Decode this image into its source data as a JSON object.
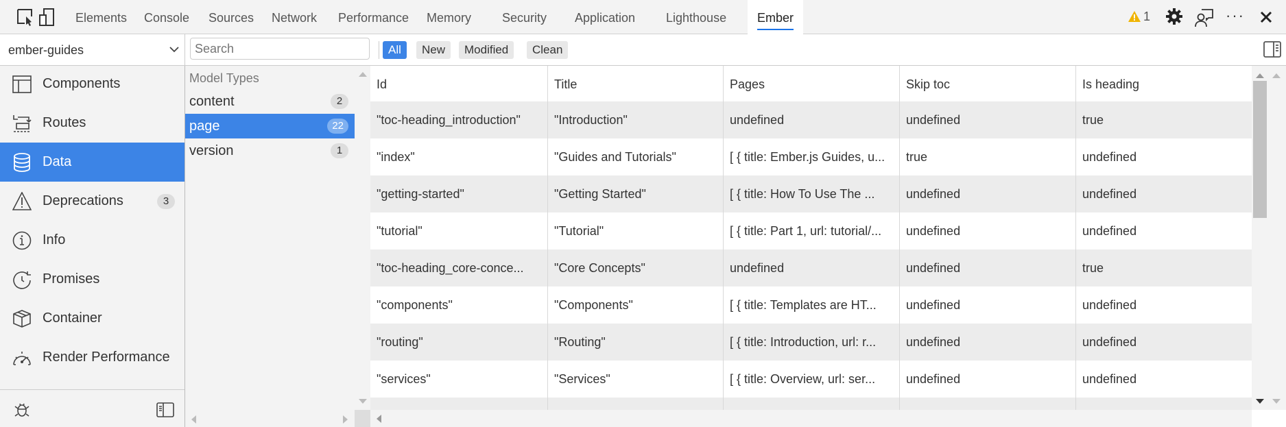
{
  "toolbar": {
    "tabs": [
      "Elements",
      "Console",
      "Sources",
      "Network",
      "Performance",
      "Memory",
      "Security",
      "Application",
      "Lighthouse",
      "Ember"
    ],
    "active_tab": "Ember",
    "warning_count": "1",
    "warning_color": "#f0b400"
  },
  "app_select": {
    "value": "ember-guides"
  },
  "search": {
    "placeholder": "Search"
  },
  "filters": [
    "All",
    "New",
    "Modified",
    "Clean"
  ],
  "sidebar": {
    "items": [
      {
        "label": "Components",
        "icon": "components-icon"
      },
      {
        "label": "Routes",
        "icon": "routes-icon"
      },
      {
        "label": "Data",
        "icon": "database-icon",
        "active": true
      },
      {
        "label": "Deprecations",
        "icon": "warning-icon",
        "badge": "3"
      },
      {
        "label": "Info",
        "icon": "info-icon"
      },
      {
        "label": "Promises",
        "icon": "promises-icon"
      },
      {
        "label": "Container",
        "icon": "box-icon"
      },
      {
        "label": "Render Performance",
        "icon": "gauge-icon"
      }
    ]
  },
  "models": {
    "header": "Model Types",
    "items": [
      {
        "label": "content",
        "count": "2"
      },
      {
        "label": "page",
        "count": "22",
        "active": true
      },
      {
        "label": "version",
        "count": "1"
      }
    ]
  },
  "table": {
    "columns": [
      "Id",
      "Title",
      "Pages",
      "Skip toc",
      "Is heading"
    ],
    "rows": [
      [
        "\"toc-heading_introduction\"",
        "\"Introduction\"",
        "undefined",
        "undefined",
        "true"
      ],
      [
        "\"index\"",
        "\"Guides and Tutorials\"",
        "[ { title: Ember.js Guides, u...",
        "true",
        "undefined"
      ],
      [
        "\"getting-started\"",
        "\"Getting Started\"",
        "[ { title: How To Use The ...",
        "undefined",
        "undefined"
      ],
      [
        "\"tutorial\"",
        "\"Tutorial\"",
        "[ { title: Part 1, url: tutorial/...",
        "undefined",
        "undefined"
      ],
      [
        "\"toc-heading_core-conce...",
        "\"Core Concepts\"",
        "undefined",
        "undefined",
        "true"
      ],
      [
        "\"components\"",
        "\"Components\"",
        "[ { title: Templates are HT...",
        "undefined",
        "undefined"
      ],
      [
        "\"routing\"",
        "\"Routing\"",
        "[ { title: Introduction, url: r...",
        "undefined",
        "undefined"
      ],
      [
        "\"services\"",
        "\"Services\"",
        "[ { title: Overview, url: ser...",
        "undefined",
        "undefined"
      ],
      [
        "",
        "",
        "",
        "",
        ""
      ]
    ]
  },
  "colors": {
    "accent": "#3c84e6"
  }
}
